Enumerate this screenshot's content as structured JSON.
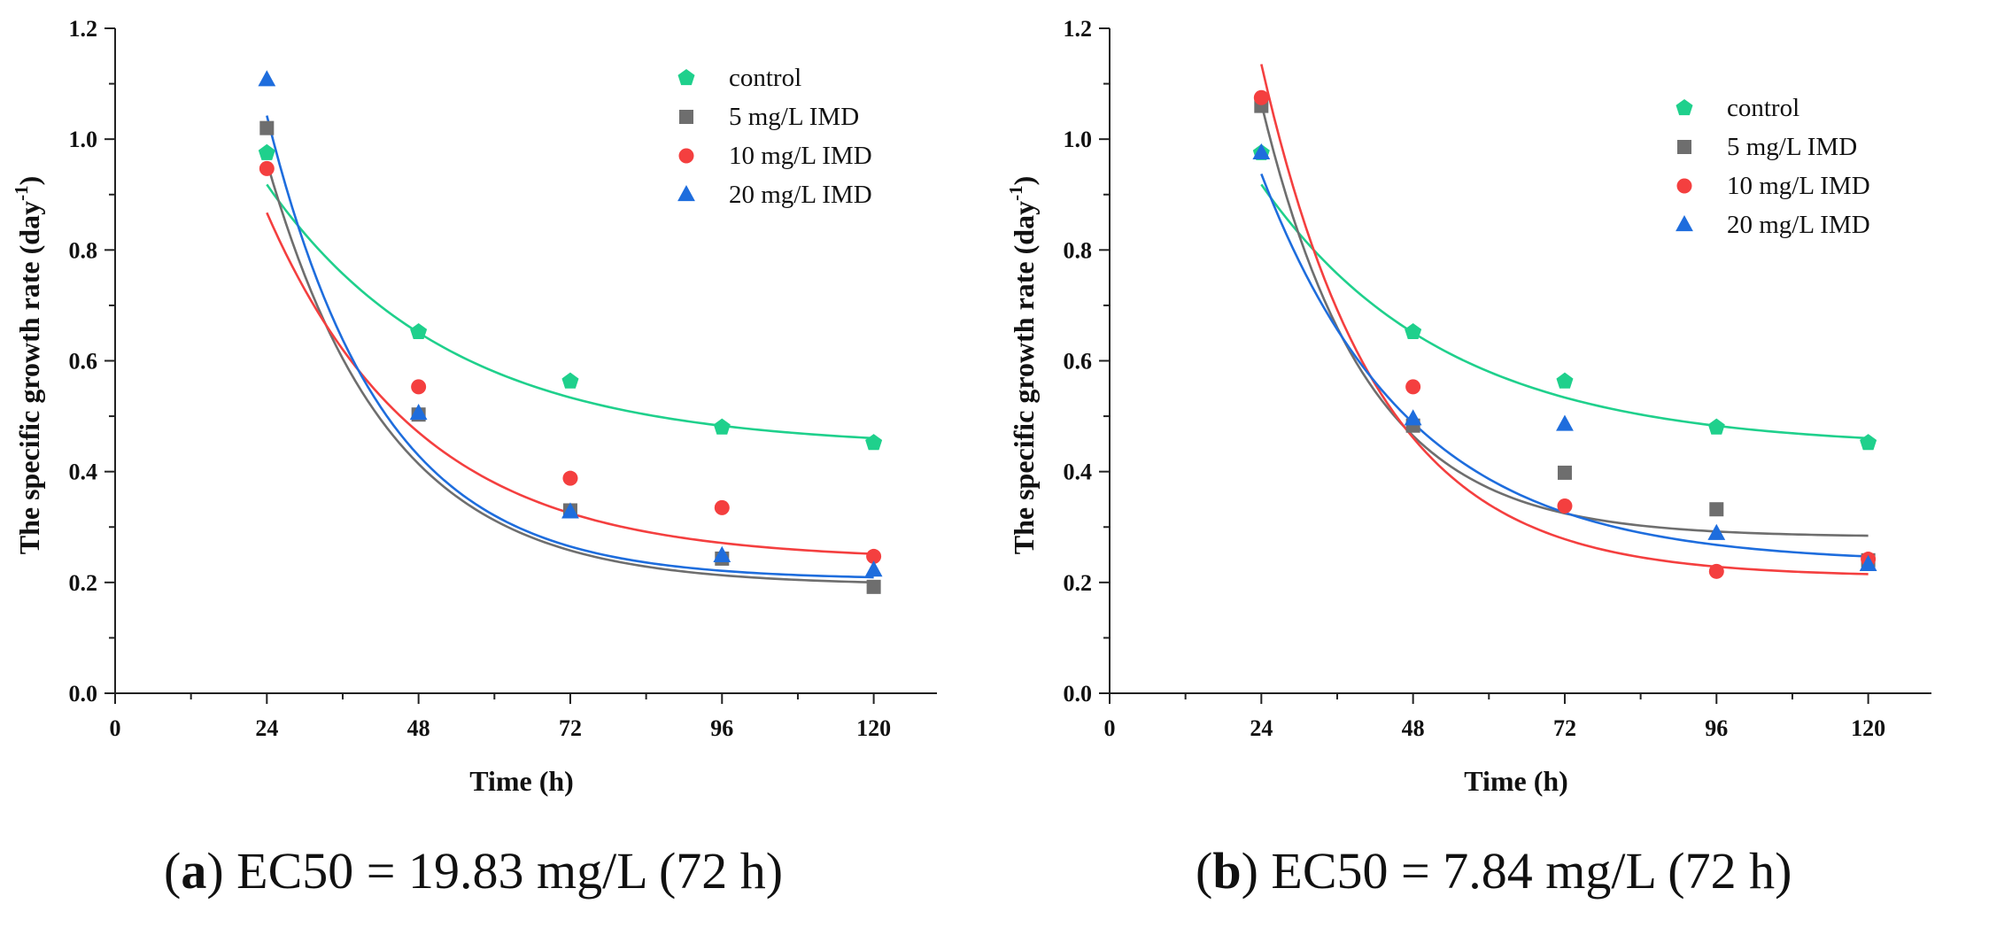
{
  "colors": {
    "control": "#1fd08c",
    "5 mg/L IMD": "#6e6e6e",
    "10 mg/L IMD": "#f43f3f",
    "20 mg/L IMD": "#1e6ddd",
    "axis": "#222222"
  },
  "chart_data": [
    {
      "type": "scatter",
      "panel_label": "a",
      "caption_text": "EC50 = 19.83 mg/L (72 h)",
      "xlabel": "Time (h)",
      "ylabel": "The specific growth rate (day",
      "ylabel_sup": "-1",
      "ylabel_end": ")",
      "xlim": [
        0,
        130
      ],
      "ylim": [
        0,
        1.2
      ],
      "xticks": [
        0,
        24,
        48,
        72,
        96,
        120
      ],
      "yticks": [
        0.0,
        0.2,
        0.4,
        0.6,
        0.8,
        1.0,
        1.2
      ],
      "ytick_labels": [
        "0.0",
        "0.2",
        "0.4",
        "0.6",
        "0.8",
        "1.0",
        "1.2"
      ],
      "legend_position": "top-right",
      "x": [
        24,
        48,
        72,
        96,
        120
      ],
      "series": [
        {
          "name": "control",
          "marker": "pentagon",
          "values": [
            0.975,
            0.652,
            0.563,
            0.48,
            0.452
          ],
          "fit": {
            "y0": 0.443,
            "A": 1.087,
            "t": 29.0
          }
        },
        {
          "name": "5 mg/L IMD",
          "marker": "square",
          "values": [
            1.02,
            0.503,
            0.33,
            0.243,
            0.192
          ],
          "fit": {
            "y0": 0.195,
            "A": 2.667,
            "t": 19.2
          }
        },
        {
          "name": "10 mg/L IMD",
          "marker": "circle",
          "values": [
            0.947,
            0.553,
            0.388,
            0.335,
            0.247
          ],
          "fit": {
            "y0": 0.24,
            "A": 1.705,
            "t": 24.0
          }
        },
        {
          "name": "20 mg/L IMD",
          "marker": "triangle",
          "values": [
            1.107,
            0.505,
            0.327,
            0.248,
            0.222
          ],
          "fit": {
            "y0": 0.205,
            "A": 3.131,
            "t": 18.2
          }
        }
      ]
    },
    {
      "type": "scatter",
      "panel_label": "b",
      "caption_text": "EC50 = 7.84 mg/L (72 h)",
      "xlabel": "Time (h)",
      "ylabel": "The specific growth rate (day",
      "ylabel_sup": "-1",
      "ylabel_end": ")",
      "xlim": [
        0,
        130
      ],
      "ylim": [
        0,
        1.2
      ],
      "xticks": [
        0,
        24,
        48,
        72,
        96,
        120
      ],
      "yticks": [
        0.0,
        0.2,
        0.4,
        0.6,
        0.8,
        1.0,
        1.2
      ],
      "ytick_labels": [
        "0.0",
        "0.2",
        "0.4",
        "0.6",
        "0.8",
        "1.0",
        "1.2"
      ],
      "legend_position": "top-right",
      "x": [
        24,
        48,
        72,
        96,
        120
      ],
      "series": [
        {
          "name": "control",
          "marker": "pentagon",
          "values": [
            0.975,
            0.652,
            0.563,
            0.48,
            0.452
          ],
          "fit": {
            "y0": 0.443,
            "A": 1.087,
            "t": 29.0
          }
        },
        {
          "name": "5 mg/L IMD",
          "marker": "square",
          "values": [
            1.06,
            0.483,
            0.398,
            0.332,
            0.24
          ],
          "fit": {
            "y0": 0.282,
            "A": 3.35,
            "t": 16.5
          }
        },
        {
          "name": "10 mg/L IMD",
          "marker": "circle",
          "values": [
            1.075,
            0.553,
            0.338,
            0.22,
            0.242
          ],
          "fit": {
            "y0": 0.21,
            "A": 3.41,
            "t": 18.4
          }
        },
        {
          "name": "20 mg/L IMD",
          "marker": "triangle",
          "values": [
            0.975,
            0.495,
            0.485,
            0.288,
            0.232
          ],
          "fit": {
            "y0": 0.235,
            "A": 1.95,
            "t": 23.5
          }
        }
      ]
    }
  ]
}
